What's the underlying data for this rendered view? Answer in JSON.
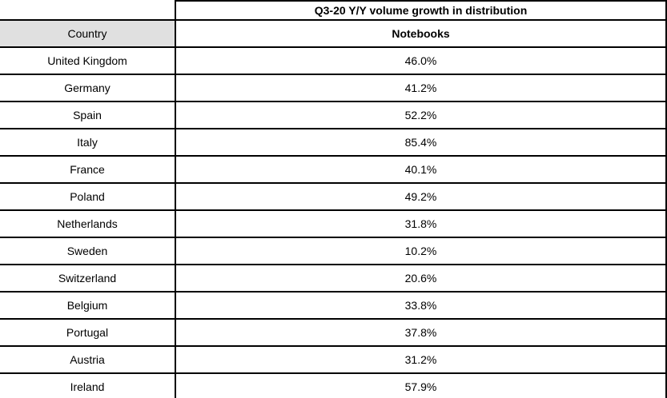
{
  "header": {
    "title": "Q3-20 Y/Y volume growth in distribution",
    "country_col": "Country",
    "value_col": "Notebooks"
  },
  "rows": [
    {
      "country": "United Kingdom",
      "value": "46.0%"
    },
    {
      "country": "Germany",
      "value": "41.2%"
    },
    {
      "country": "Spain",
      "value": "52.2%"
    },
    {
      "country": "Italy",
      "value": "85.4%"
    },
    {
      "country": "France",
      "value": "40.1%"
    },
    {
      "country": "Poland",
      "value": "49.2%"
    },
    {
      "country": "Netherlands",
      "value": "31.8%"
    },
    {
      "country": "Sweden",
      "value": "10.2%"
    },
    {
      "country": "Switzerland",
      "value": "20.6%"
    },
    {
      "country": "Belgium",
      "value": "33.8%"
    },
    {
      "country": "Portugal",
      "value": "37.8%"
    },
    {
      "country": "Austria",
      "value": "31.2%"
    },
    {
      "country": "Ireland",
      "value": "57.9%"
    }
  ],
  "colors": {
    "border": "#000000",
    "header_bg": "#e0e0e0",
    "page_bg": "#ffffff"
  },
  "chart_data": {
    "type": "table",
    "title": "Q3-20 Y/Y volume growth in distribution",
    "columns": [
      "Country",
      "Notebooks"
    ],
    "categories": [
      "United Kingdom",
      "Germany",
      "Spain",
      "Italy",
      "France",
      "Poland",
      "Netherlands",
      "Sweden",
      "Switzerland",
      "Belgium",
      "Portugal",
      "Austria",
      "Ireland"
    ],
    "values_pct": [
      46.0,
      41.2,
      52.2,
      85.4,
      40.1,
      49.2,
      31.8,
      10.2,
      20.6,
      33.8,
      37.8,
      31.2,
      57.9
    ],
    "layout": {
      "grid": true,
      "value_format": "percent_1dp",
      "header_highlight": "Country cell gray"
    }
  }
}
